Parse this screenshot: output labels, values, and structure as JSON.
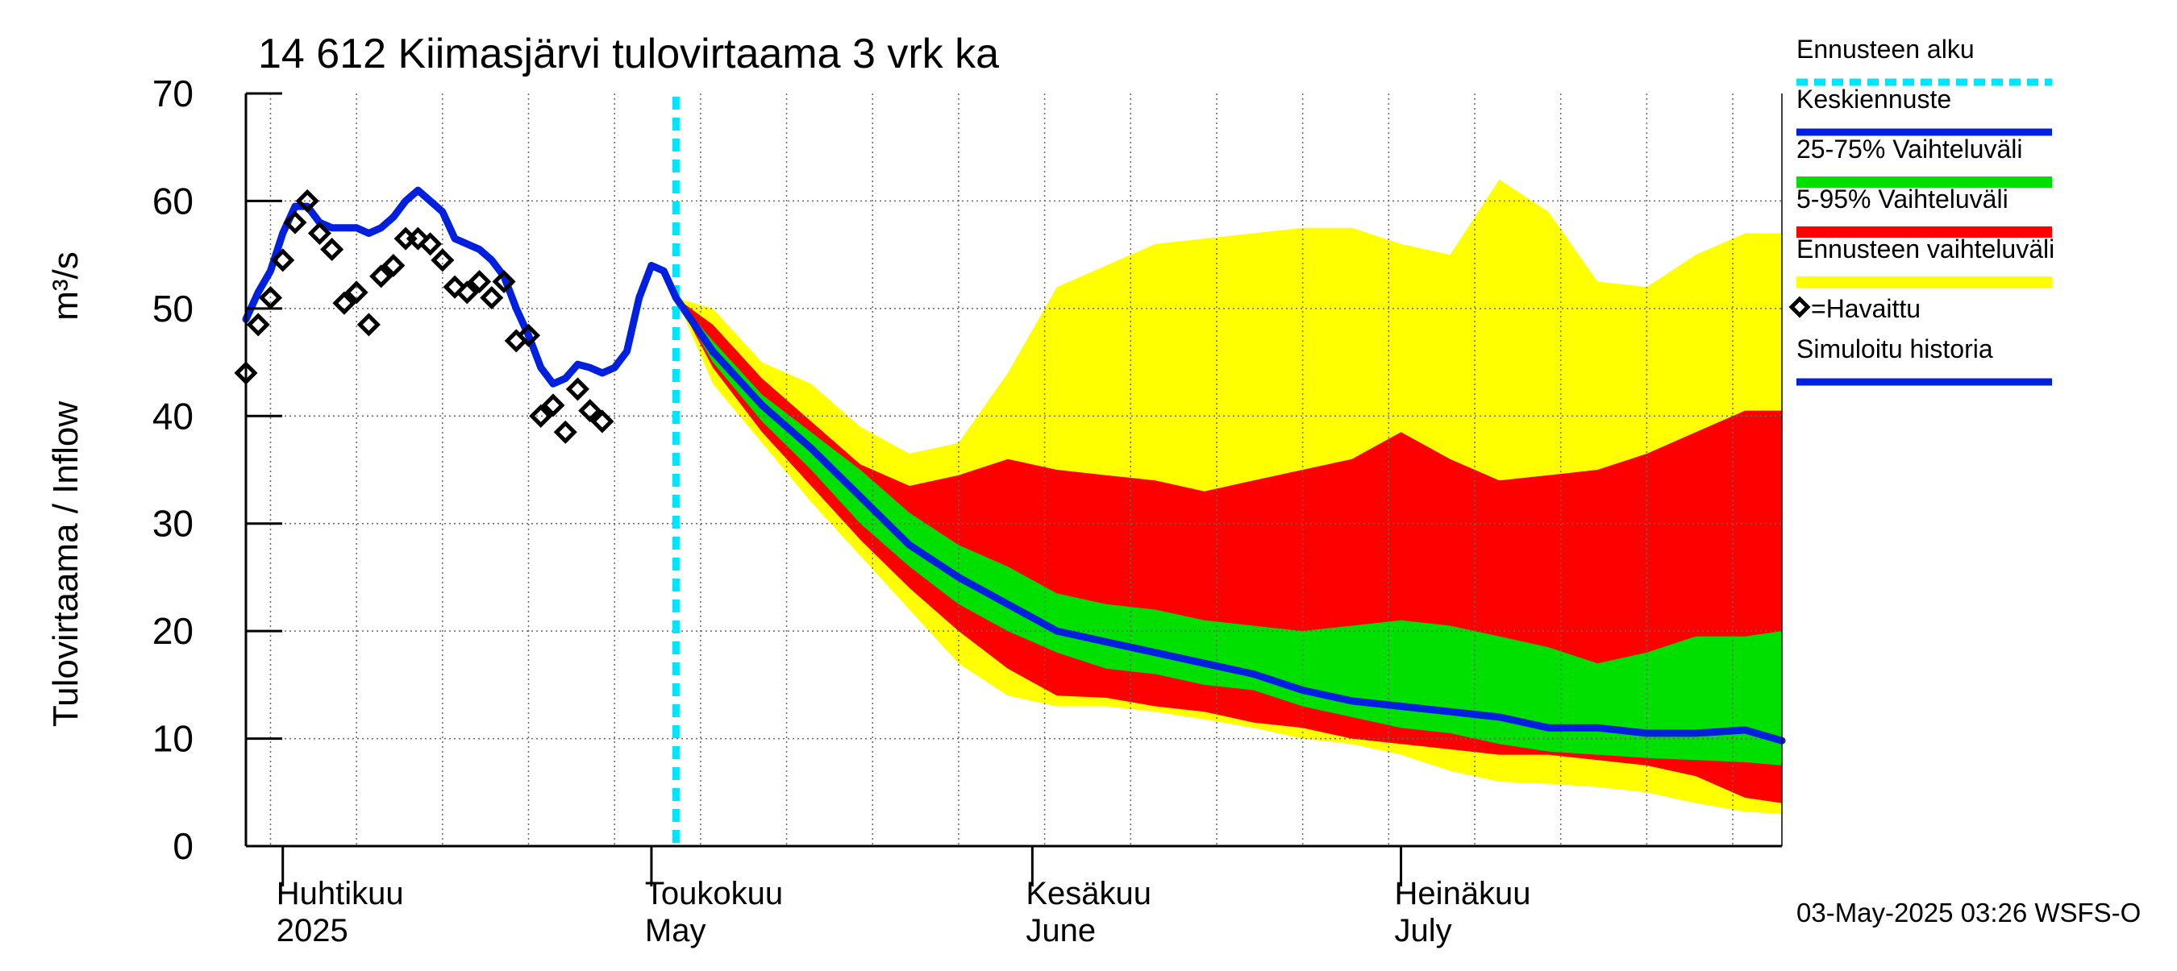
{
  "chart_data": {
    "type": "area",
    "title": "14 612 Kiimasjärvi tulovirtaama 3 vrk ka",
    "ylabel": "Tulovirtaama / Inflow",
    "yunit": "m³/s",
    "ylim": [
      0,
      70
    ],
    "yticks": [
      0,
      10,
      20,
      30,
      40,
      50,
      60,
      70
    ],
    "xlim": [
      "2025-03-29",
      "2025-08-01"
    ],
    "x_month_labels": [
      {
        "date": "2025-04-01",
        "fi": "Huhtikuu",
        "en": "2025"
      },
      {
        "date": "2025-05-01",
        "fi": "Toukokuu",
        "en": "May"
      },
      {
        "date": "2025-06-01",
        "fi": "Kesäkuu",
        "en": "June"
      },
      {
        "date": "2025-07-01",
        "fi": "Heinäkuu",
        "en": "July"
      }
    ],
    "grid": true,
    "forecast_start": "2025-05-03",
    "timestamp": "03-May-2025 03:26 WSFS-O",
    "legend_position": "right",
    "legend": [
      {
        "label": "Ennusteen alku",
        "color": "#00e5ff",
        "style": "dotted"
      },
      {
        "label": "Keskiennuste",
        "color": "#0020e0",
        "style": "line"
      },
      {
        "label": "25-75% Vaihteluväli",
        "color": "#00e000",
        "style": "band"
      },
      {
        "label": "5-95% Vaihteluväli",
        "color": "#ff0000",
        "style": "band"
      },
      {
        "label": "Ennusteen vaihteluväli",
        "color": "#ffff00",
        "style": "band"
      },
      {
        "label": "=Havaittu",
        "color": "#000000",
        "style": "marker"
      },
      {
        "label": "Simuloitu historia",
        "color": "#0020e0",
        "style": "line"
      }
    ],
    "colors": {
      "forecast_start": "#00e5ff",
      "median": "#0020e0",
      "p25_75": "#00e000",
      "p5_95": "#ff0000",
      "range": "#ffff00",
      "observed": "#000000",
      "history": "#0020e0"
    },
    "observed": [
      [
        "2025-03-29",
        44
      ],
      [
        "2025-03-30",
        48.5
      ],
      [
        "2025-03-31",
        51
      ],
      [
        "2025-04-01",
        54.5
      ],
      [
        "2025-04-02",
        58
      ],
      [
        "2025-04-03",
        60
      ],
      [
        "2025-04-04",
        57
      ],
      [
        "2025-04-05",
        55.5
      ],
      [
        "2025-04-06",
        50.5
      ],
      [
        "2025-04-07",
        51.5
      ],
      [
        "2025-04-08",
        48.5
      ],
      [
        "2025-04-09",
        53
      ],
      [
        "2025-04-10",
        54
      ],
      [
        "2025-04-11",
        56.5
      ],
      [
        "2025-04-12",
        56.5
      ],
      [
        "2025-04-13",
        56
      ],
      [
        "2025-04-14",
        54.5
      ],
      [
        "2025-04-15",
        52
      ],
      [
        "2025-04-16",
        51.5
      ],
      [
        "2025-04-17",
        52.5
      ],
      [
        "2025-04-18",
        51
      ],
      [
        "2025-04-19",
        52.5
      ],
      [
        "2025-04-20",
        47
      ],
      [
        "2025-04-21",
        47.5
      ],
      [
        "2025-04-22",
        40
      ],
      [
        "2025-04-23",
        41
      ],
      [
        "2025-04-24",
        38.5
      ],
      [
        "2025-04-25",
        42.5
      ],
      [
        "2025-04-26",
        40.5
      ],
      [
        "2025-04-27",
        39.5
      ]
    ],
    "simulated_history": [
      [
        "2025-03-29",
        49
      ],
      [
        "2025-03-30",
        51.5
      ],
      [
        "2025-03-31",
        53.5
      ],
      [
        "2025-04-01",
        57
      ],
      [
        "2025-04-02",
        59.5
      ],
      [
        "2025-04-03",
        59.5
      ],
      [
        "2025-04-04",
        58
      ],
      [
        "2025-04-05",
        57.5
      ],
      [
        "2025-04-06",
        57.5
      ],
      [
        "2025-04-07",
        57.5
      ],
      [
        "2025-04-08",
        57
      ],
      [
        "2025-04-09",
        57.5
      ],
      [
        "2025-04-10",
        58.5
      ],
      [
        "2025-04-11",
        60
      ],
      [
        "2025-04-12",
        61
      ],
      [
        "2025-04-13",
        60
      ],
      [
        "2025-04-14",
        59
      ],
      [
        "2025-04-15",
        56.5
      ],
      [
        "2025-04-16",
        56
      ],
      [
        "2025-04-17",
        55.5
      ],
      [
        "2025-04-18",
        54.5
      ],
      [
        "2025-04-19",
        53
      ],
      [
        "2025-04-20",
        50
      ],
      [
        "2025-04-21",
        47.5
      ],
      [
        "2025-04-22",
        44.5
      ],
      [
        "2025-04-23",
        43
      ],
      [
        "2025-04-24",
        43.5
      ],
      [
        "2025-04-25",
        44.8
      ],
      [
        "2025-04-26",
        44.5
      ],
      [
        "2025-04-27",
        44
      ],
      [
        "2025-04-28",
        44.5
      ],
      [
        "2025-04-29",
        46
      ],
      [
        "2025-04-30",
        51
      ],
      [
        "2025-05-01",
        54
      ],
      [
        "2025-05-02",
        53.5
      ],
      [
        "2025-05-03",
        51
      ]
    ],
    "forecast": {
      "dates": [
        "2025-05-03",
        "2025-05-06",
        "2025-05-10",
        "2025-05-14",
        "2025-05-18",
        "2025-05-22",
        "2025-05-26",
        "2025-05-30",
        "2025-06-03",
        "2025-06-07",
        "2025-06-11",
        "2025-06-15",
        "2025-06-19",
        "2025-06-23",
        "2025-06-27",
        "2025-07-01",
        "2025-07-05",
        "2025-07-09",
        "2025-07-13",
        "2025-07-17",
        "2025-07-21",
        "2025-07-25",
        "2025-07-29",
        "2025-08-01"
      ],
      "median": [
        51,
        46,
        41,
        37,
        32.5,
        28,
        25,
        22.5,
        20,
        19,
        18,
        17,
        16,
        14.5,
        13.5,
        13,
        12.5,
        12,
        11,
        11,
        10.5,
        10.5,
        10.8,
        9.8
      ],
      "p25": [
        51,
        45,
        39.5,
        35,
        30,
        26,
        22.5,
        20,
        18,
        16.5,
        16,
        15,
        14.5,
        13,
        12,
        11,
        10.5,
        9.5,
        8.8,
        8.5,
        8.2,
        8,
        7.8,
        7.5
      ],
      "p75": [
        51,
        47,
        42,
        38.5,
        35,
        31,
        28,
        26,
        23.5,
        22.5,
        22,
        21,
        20.5,
        20,
        20.5,
        21,
        20.5,
        19.5,
        18.5,
        17,
        18,
        19.5,
        19.5,
        20
      ],
      "p5": [
        51,
        44.5,
        38.5,
        33.5,
        28.5,
        24,
        20,
        16.5,
        14,
        13.8,
        13,
        12.5,
        11.5,
        11,
        10,
        9.5,
        9,
        8.5,
        8.5,
        8,
        7.5,
        6.5,
        4.5,
        4
      ],
      "p95": [
        51,
        48.5,
        43.5,
        39.5,
        35.5,
        33.5,
        34.5,
        36,
        35,
        34.5,
        34,
        33,
        34,
        35,
        36,
        38.5,
        36,
        34,
        34.5,
        35,
        36.5,
        38.5,
        40.5,
        40.5
      ],
      "min": [
        51,
        43,
        37.5,
        32,
        27,
        22,
        17,
        14,
        13,
        13,
        12.5,
        11.8,
        11,
        10,
        9.5,
        8.5,
        7,
        6,
        5.8,
        5.5,
        5,
        4,
        3.2,
        3
      ],
      "max": [
        51,
        50,
        45,
        43,
        39,
        36.5,
        37.5,
        44,
        52,
        54,
        56,
        56.5,
        57,
        57.5,
        57.5,
        56,
        55,
        62,
        59,
        52.5,
        52,
        55,
        57,
        57
      ]
    }
  }
}
